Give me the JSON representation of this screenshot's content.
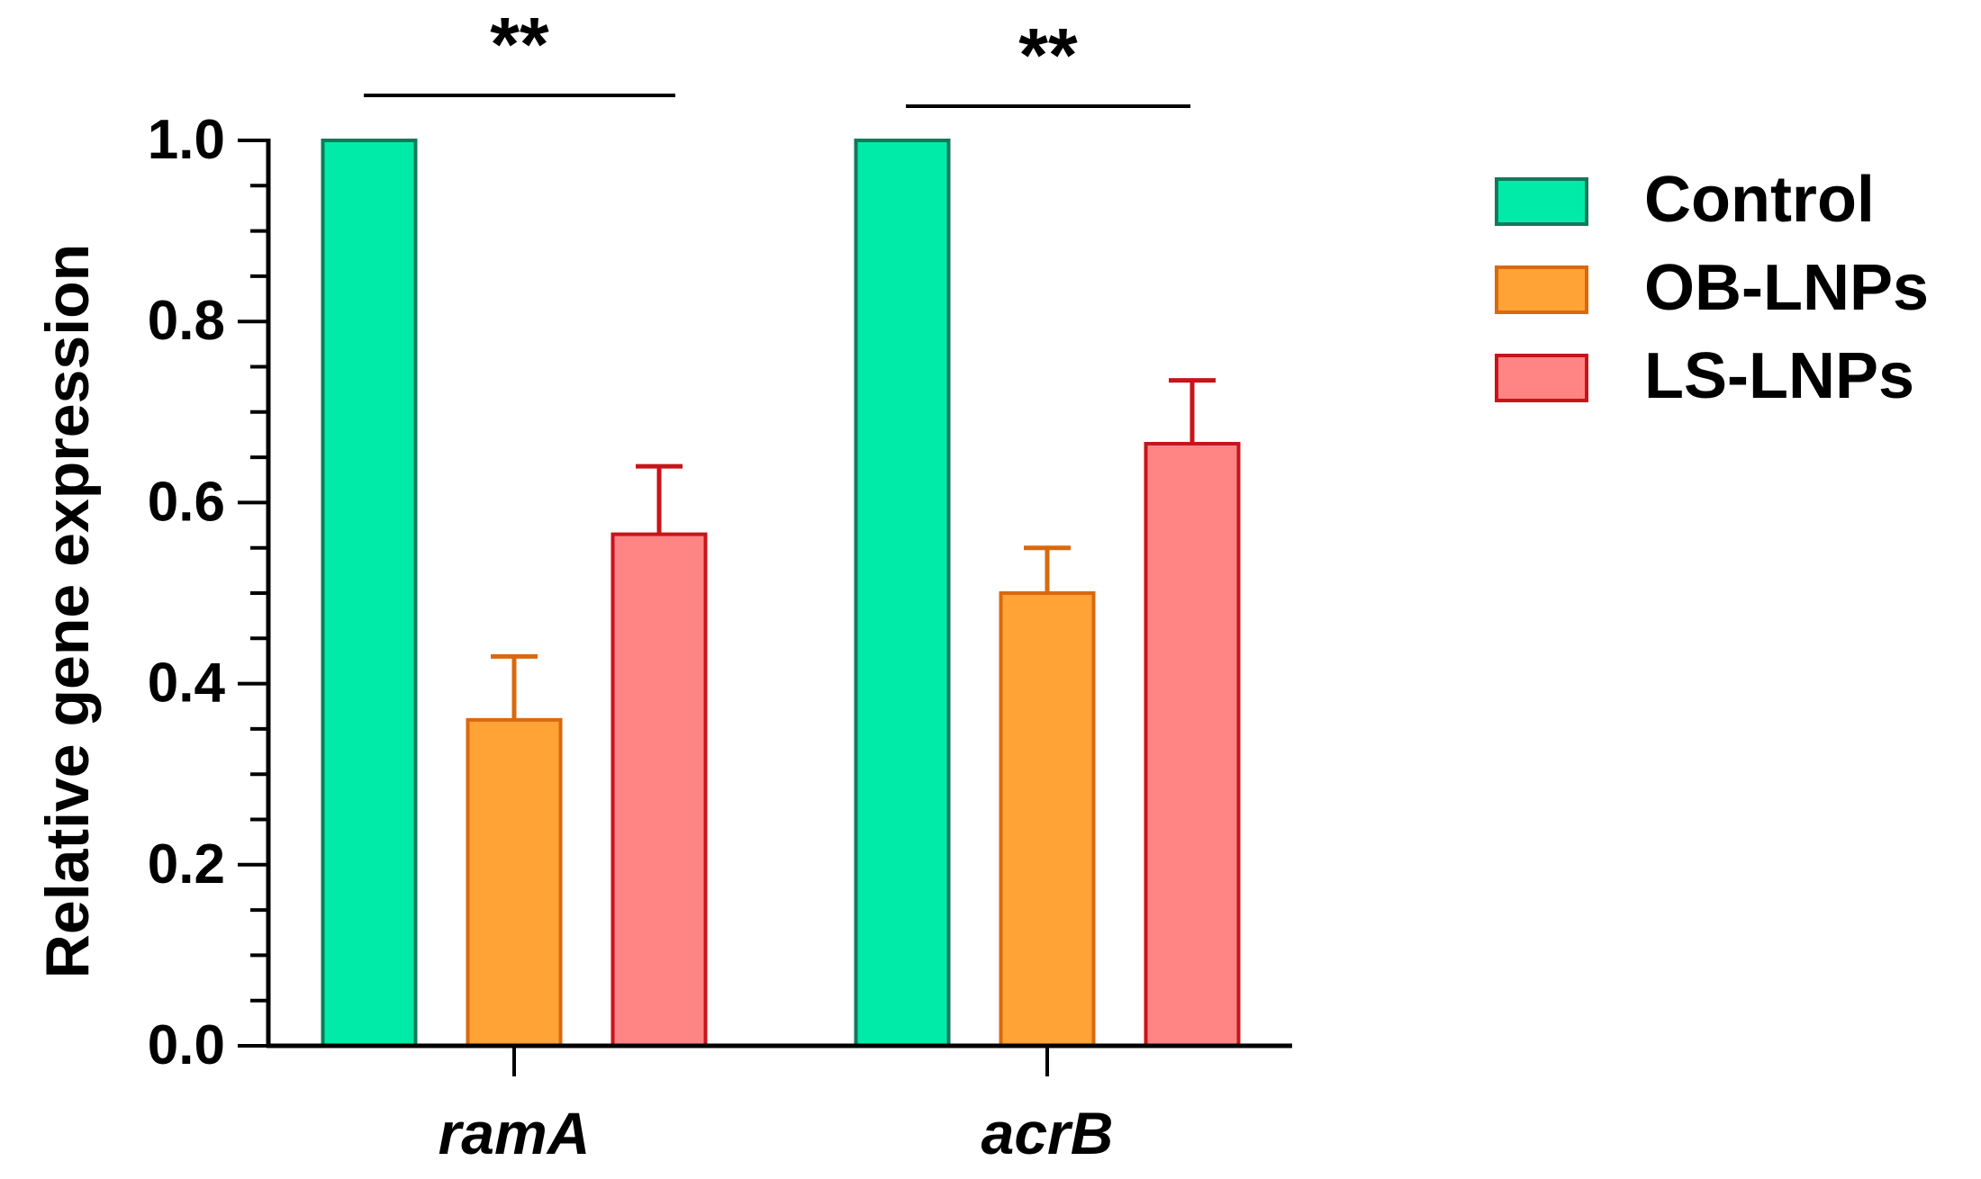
{
  "chart_data": {
    "type": "bar",
    "title": "",
    "xlabel": "",
    "ylabel": "Relative gene expression",
    "ylim": [
      0,
      1.0
    ],
    "y_ticks": [
      0.0,
      0.2,
      0.4,
      0.6,
      0.8,
      1.0
    ],
    "y_tick_labels": [
      "0.0",
      "0.2",
      "0.4",
      "0.6",
      "0.8",
      "1.0"
    ],
    "categories": [
      "ramA",
      "acrB"
    ],
    "series": [
      {
        "name": "Control",
        "values": [
          1.0,
          1.0
        ],
        "errors": [
          0,
          0
        ],
        "fill": "#00EBA8",
        "stroke": "#127A5A"
      },
      {
        "name": "OB-LNPs",
        "values": [
          0.36,
          0.5
        ],
        "errors": [
          0.07,
          0.05
        ],
        "fill": "#FFA337",
        "stroke": "#D9690E"
      },
      {
        "name": "LS-LNPs",
        "values": [
          0.565,
          0.665
        ],
        "errors": [
          0.075,
          0.07
        ],
        "fill": "#FF8585",
        "stroke": "#C7141A"
      }
    ],
    "significance": [
      {
        "category": "ramA",
        "label": "**"
      },
      {
        "category": "acrB",
        "label": "**"
      }
    ],
    "legend_position": "right",
    "grid": false
  }
}
